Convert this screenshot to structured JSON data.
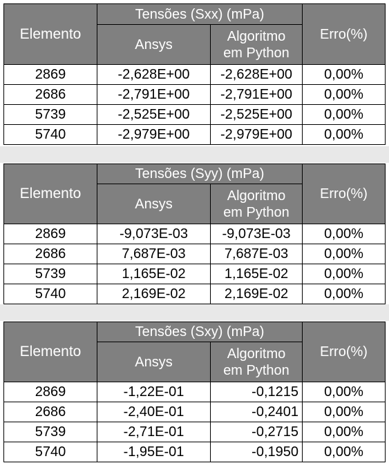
{
  "tables": [
    {
      "group_header": "Tensões (Sxx) (mPa)",
      "col_elemento": "Elemento",
      "col_ansys": "Ansys",
      "col_algoritmo_l1": "Algoritmo",
      "col_algoritmo_l2": "em Python",
      "col_erro": "Erro(%)",
      "rows": [
        {
          "elemento": "2869",
          "ansys": "-2,628E+00",
          "python": "-2,628E+00",
          "erro": "0,00%"
        },
        {
          "elemento": "2686",
          "ansys": "-2,791E+00",
          "python": "-2,791E+00",
          "erro": "0,00%"
        },
        {
          "elemento": "5739",
          "ansys": "-2,525E+00",
          "python": "-2,525E+00",
          "erro": "0,00%"
        },
        {
          "elemento": "5740",
          "ansys": "-2,979E+00",
          "python": "-2,979E+00",
          "erro": "0,00%"
        }
      ]
    },
    {
      "group_header": "Tensões (Syy) (mPa)",
      "col_elemento": "Elemento",
      "col_ansys": "Ansys",
      "col_algoritmo_l1": "Algoritmo",
      "col_algoritmo_l2": "em Python",
      "col_erro": "Erro(%)",
      "rows": [
        {
          "elemento": "2869",
          "ansys": "-9,073E-03",
          "python": "-9,073E-03",
          "erro": "0,00%"
        },
        {
          "elemento": "2686",
          "ansys": "7,687E-03",
          "python": "7,687E-03",
          "erro": "0,00%"
        },
        {
          "elemento": "5739",
          "ansys": "1,165E-02",
          "python": "1,165E-02",
          "erro": "0,00%"
        },
        {
          "elemento": "5740",
          "ansys": "2,169E-02",
          "python": "2,169E-02",
          "erro": "0,00%"
        }
      ]
    },
    {
      "group_header": "Tensões (Sxy) (mPa)",
      "col_elemento": "Elemento",
      "col_ansys": "Ansys",
      "col_algoritmo_l1": "Algoritmo",
      "col_algoritmo_l2": "em Python",
      "col_erro": "Erro(%)",
      "rows": [
        {
          "elemento": "2869",
          "ansys": "-1,22E-01",
          "python": "-0,1215",
          "erro": "0,00%"
        },
        {
          "elemento": "2686",
          "ansys": "-2,40E-01",
          "python": "-0,2401",
          "erro": "0,00%"
        },
        {
          "elemento": "5739",
          "ansys": "-2,71E-01",
          "python": "-0,2715",
          "erro": "0,00%"
        },
        {
          "elemento": "5740",
          "ansys": "-1,95E-01",
          "python": "-0,1950",
          "erro": "0,00%"
        }
      ]
    }
  ],
  "colors": {
    "header_bg": "#808080",
    "header_text": "#ffffff",
    "band": "#e8e8e8"
  }
}
